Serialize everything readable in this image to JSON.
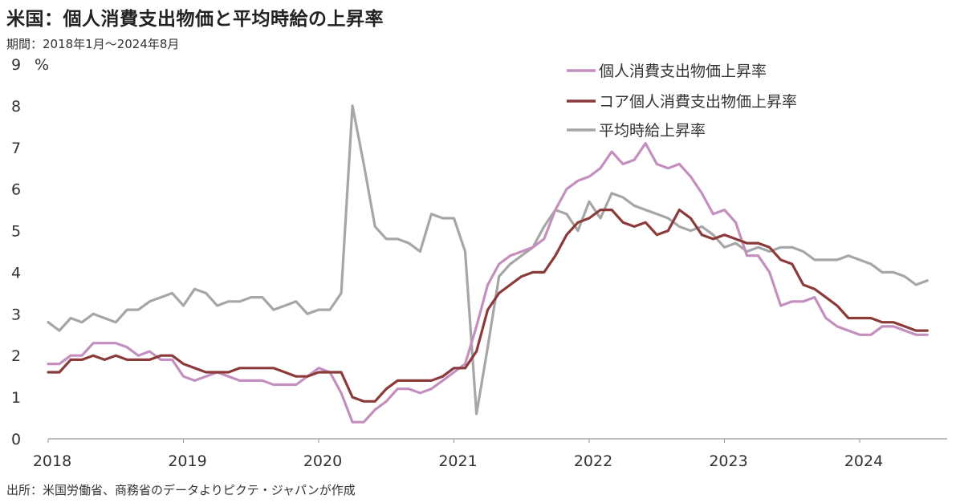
{
  "title": "米国：個人消費支出物価と平均時給の上昇率",
  "subtitle": "期間：2018年1月～2024年8月",
  "source": "出所：米国労働省、商務省のデータよりピクテ・ジャパンが作成",
  "chart_data": {
    "type": "line",
    "unit_label": "%",
    "ylim": [
      0,
      9
    ],
    "yticks": [
      "0",
      "1",
      "2",
      "3",
      "4",
      "5",
      "6",
      "7",
      "8",
      "9"
    ],
    "x_labels": [
      "2018",
      "2019",
      "2020",
      "2021",
      "2022",
      "2023",
      "2024"
    ],
    "x_start": "2018-01",
    "legend_position": "top-right",
    "grid": false,
    "series": [
      {
        "name": "個人消費支出物価上昇率",
        "color": "#c48fbe",
        "values": [
          1.8,
          1.8,
          2.0,
          2.0,
          2.3,
          2.3,
          2.3,
          2.2,
          2.0,
          2.1,
          1.9,
          1.9,
          1.5,
          1.4,
          1.5,
          1.6,
          1.5,
          1.4,
          1.4,
          1.4,
          1.3,
          1.3,
          1.3,
          1.5,
          1.7,
          1.6,
          1.1,
          0.4,
          0.4,
          0.7,
          0.9,
          1.2,
          1.2,
          1.1,
          1.2,
          1.4,
          1.6,
          1.8,
          2.7,
          3.7,
          4.2,
          4.4,
          4.5,
          4.6,
          4.8,
          5.5,
          6.0,
          6.2,
          6.3,
          6.5,
          6.9,
          6.6,
          6.7,
          7.1,
          6.6,
          6.5,
          6.6,
          6.3,
          5.9,
          5.4,
          5.5,
          5.2,
          4.4,
          4.4,
          4.0,
          3.2,
          3.3,
          3.3,
          3.4,
          2.9,
          2.7,
          2.6,
          2.5,
          2.5,
          2.7,
          2.7,
          2.6,
          2.5,
          2.5
        ]
      },
      {
        "name": "コア個人消費支出物価上昇率",
        "color": "#8b3a3a",
        "values": [
          1.6,
          1.6,
          1.9,
          1.9,
          2.0,
          1.9,
          2.0,
          1.9,
          1.9,
          1.9,
          2.0,
          2.0,
          1.8,
          1.7,
          1.6,
          1.6,
          1.6,
          1.7,
          1.7,
          1.7,
          1.7,
          1.6,
          1.5,
          1.5,
          1.6,
          1.6,
          1.6,
          1.0,
          0.9,
          0.9,
          1.2,
          1.4,
          1.4,
          1.4,
          1.4,
          1.5,
          1.7,
          1.7,
          2.1,
          3.1,
          3.5,
          3.7,
          3.9,
          4.0,
          4.0,
          4.4,
          4.9,
          5.2,
          5.3,
          5.5,
          5.5,
          5.2,
          5.1,
          5.2,
          4.9,
          5.0,
          5.5,
          5.3,
          4.9,
          4.8,
          4.9,
          4.8,
          4.7,
          4.7,
          4.6,
          4.3,
          4.2,
          3.7,
          3.6,
          3.4,
          3.2,
          2.9,
          2.9,
          2.9,
          2.8,
          2.8,
          2.7,
          2.6,
          2.6
        ]
      },
      {
        "name": "平均時給上昇率",
        "color": "#a6a6a6",
        "values": [
          2.8,
          2.6,
          2.9,
          2.8,
          3.0,
          2.9,
          2.8,
          3.1,
          3.1,
          3.3,
          3.4,
          3.5,
          3.2,
          3.6,
          3.5,
          3.2,
          3.3,
          3.3,
          3.4,
          3.4,
          3.1,
          3.2,
          3.3,
          3.0,
          3.1,
          3.1,
          3.5,
          8.0,
          6.6,
          5.1,
          4.8,
          4.8,
          4.7,
          4.5,
          5.4,
          5.3,
          5.3,
          4.5,
          0.6,
          2.2,
          3.9,
          4.2,
          4.4,
          4.6,
          5.1,
          5.5,
          5.4,
          5.0,
          5.7,
          5.3,
          5.9,
          5.8,
          5.6,
          5.5,
          5.4,
          5.3,
          5.1,
          5.0,
          5.1,
          4.9,
          4.6,
          4.7,
          4.5,
          4.6,
          4.5,
          4.6,
          4.6,
          4.5,
          4.3,
          4.3,
          4.3,
          4.4,
          4.3,
          4.2,
          4.0,
          4.0,
          3.9,
          3.7,
          3.8
        ]
      }
    ]
  }
}
